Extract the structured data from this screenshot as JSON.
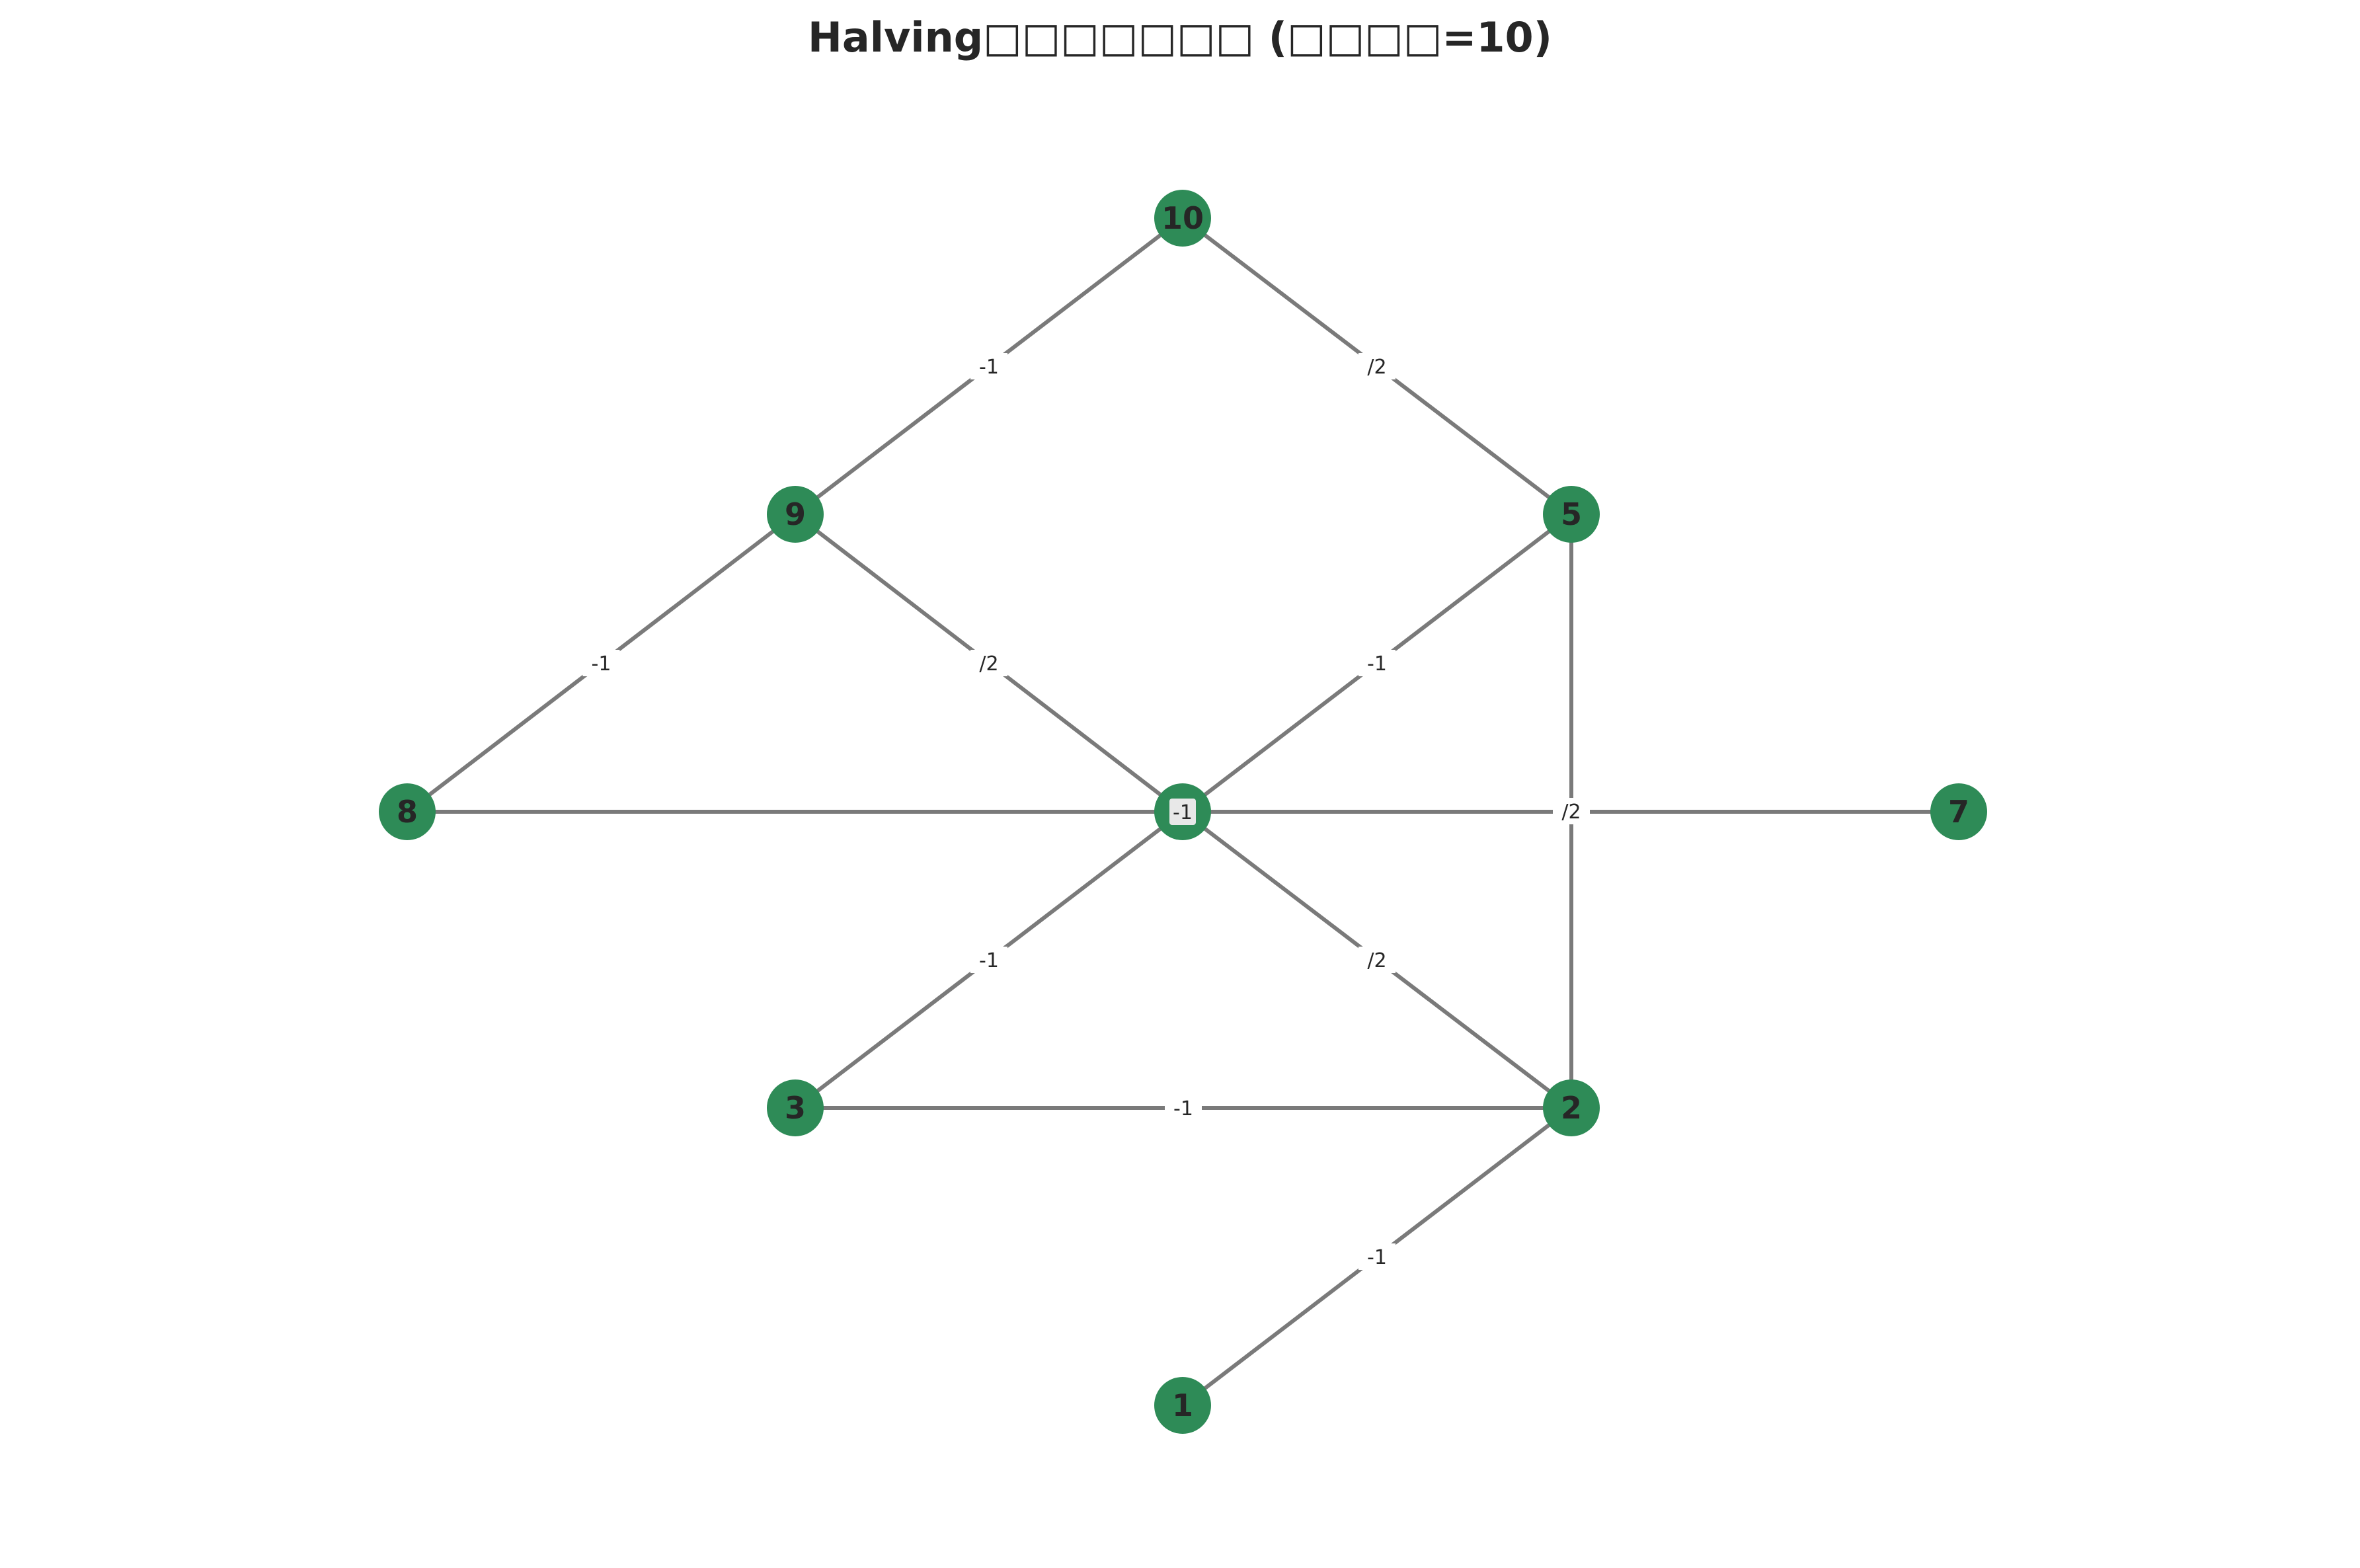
{
  "figure": {
    "title": "Halving□□□□□□□ (□□□□=10)"
  },
  "colors": {
    "node_fill": "#2e8b57",
    "edge_stroke": "#7a7a7a",
    "text": "#262626",
    "edge_label_bg": "#ffffff"
  },
  "chart_data": {
    "type": "graph",
    "title": "Halving□□□□□□□ (□□□□=10)",
    "root": "10",
    "nodes": [
      {
        "id": "10",
        "label": "10",
        "depth": 0
      },
      {
        "id": "9",
        "label": "9",
        "depth": 1
      },
      {
        "id": "5",
        "label": "5",
        "depth": 1
      },
      {
        "id": "8",
        "label": "8",
        "depth": 2
      },
      {
        "id": "4",
        "label": "",
        "depth": 2
      },
      {
        "id": "7",
        "label": "7",
        "depth": 2
      },
      {
        "id": "3",
        "label": "3",
        "depth": 3
      },
      {
        "id": "2",
        "label": "2",
        "depth": 3
      },
      {
        "id": "1",
        "label": "1",
        "depth": 4
      }
    ],
    "edges": [
      {
        "source": "10",
        "target": "9",
        "label": "-1"
      },
      {
        "source": "10",
        "target": "5",
        "label": "/2"
      },
      {
        "source": "9",
        "target": "8",
        "label": "-1"
      },
      {
        "source": "9",
        "target": "4",
        "label": "/2"
      },
      {
        "source": "5",
        "target": "4",
        "label": "-1"
      },
      {
        "source": "5",
        "target": "2",
        "label": "/2"
      },
      {
        "source": "8",
        "target": "4",
        "label": ""
      },
      {
        "source": "4",
        "target": "7",
        "label": ""
      },
      {
        "source": "4",
        "target": "3",
        "label": "-1"
      },
      {
        "source": "4",
        "target": "2",
        "label": "/2"
      },
      {
        "source": "3",
        "target": "2",
        "label": "-1"
      },
      {
        "source": "2",
        "target": "1",
        "label": "-1"
      }
    ],
    "center_label": "-1"
  }
}
